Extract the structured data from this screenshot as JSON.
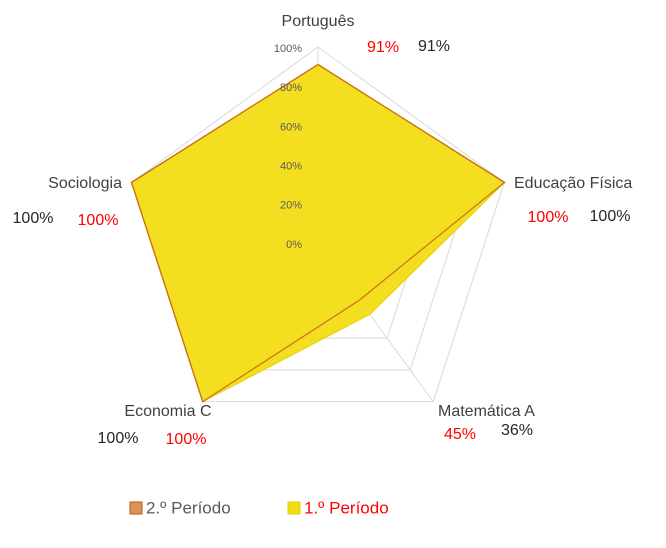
{
  "chart_data": {
    "type": "radar",
    "categories": [
      "Português",
      "Educação Física",
      "Matemática A",
      "Economia C",
      "Sociologia"
    ],
    "ylim": [
      0,
      100
    ],
    "yticks": [
      {
        "value": 0,
        "label": "0%"
      },
      {
        "value": 20,
        "label": "20%"
      },
      {
        "value": 40,
        "label": "40%"
      },
      {
        "value": 60,
        "label": "60%"
      },
      {
        "value": 80,
        "label": "80%"
      },
      {
        "value": 100,
        "label": "100%"
      }
    ],
    "grid": true,
    "legend": "bottom",
    "series": [
      {
        "name": "2.º Período",
        "color": "#c55a11",
        "fill": "#d9955a",
        "label_color": "#262626",
        "values": [
          91,
          100,
          36,
          100,
          100
        ],
        "value_labels": [
          "91%",
          "100%",
          "36%",
          "100%",
          "100%"
        ]
      },
      {
        "name": "1.º Período",
        "color": "#e6cf00",
        "fill": "#f2dd14",
        "label_color": "#ff0000",
        "values": [
          91,
          100,
          45,
          100,
          100
        ],
        "value_labels": [
          "91%",
          "100%",
          "45%",
          "100%",
          "100%"
        ]
      }
    ]
  }
}
